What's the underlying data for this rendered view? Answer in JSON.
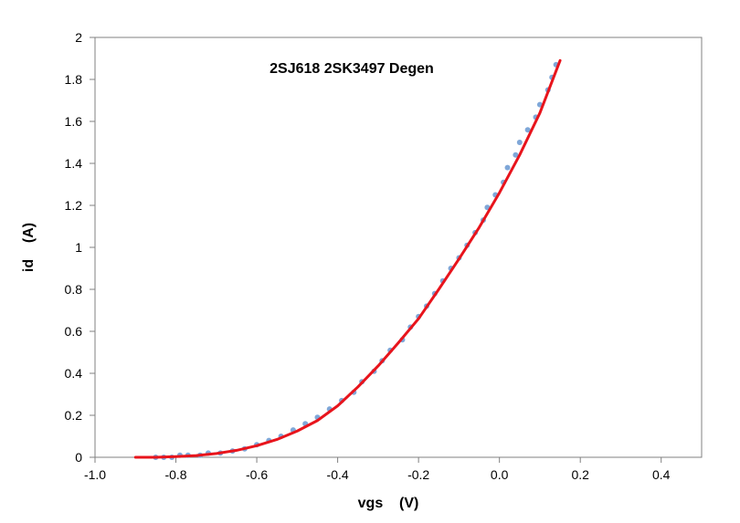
{
  "chart_data": {
    "type": "scatter",
    "title": "2SJ618 2SK3497 Degen",
    "xlabel": "vgs    (V)",
    "ylabel": "id    (A)",
    "xlim": [
      -1.0,
      0.5
    ],
    "ylim": [
      0,
      2
    ],
    "x_ticks": [
      -1.0,
      -0.8,
      -0.6,
      -0.4,
      -0.2,
      0.0,
      0.2,
      0.4
    ],
    "x_tick_labels": [
      "-1.0",
      "-0.8",
      "-0.6",
      "-0.4",
      "-0.2",
      "0.0",
      "0.2",
      "0.4"
    ],
    "y_ticks": [
      0,
      0.2,
      0.4,
      0.6,
      0.8,
      1,
      1.2,
      1.4,
      1.6,
      1.8,
      2
    ],
    "y_tick_labels": [
      "0",
      "0.2",
      "0.4",
      "0.6",
      "0.8",
      "1",
      "1.2",
      "1.4",
      "1.6",
      "1.8",
      "2"
    ],
    "grid": false,
    "series": [
      {
        "kind": "markers",
        "color": "#7fa7d8",
        "points": [
          [
            -0.85,
            0.0
          ],
          [
            -0.83,
            0.0
          ],
          [
            -0.81,
            0.0
          ],
          [
            -0.79,
            0.01
          ],
          [
            -0.77,
            0.01
          ],
          [
            -0.74,
            0.01
          ],
          [
            -0.72,
            0.02
          ],
          [
            -0.69,
            0.02
          ],
          [
            -0.66,
            0.03
          ],
          [
            -0.63,
            0.04
          ],
          [
            -0.6,
            0.06
          ],
          [
            -0.57,
            0.08
          ],
          [
            -0.54,
            0.1
          ],
          [
            -0.51,
            0.13
          ],
          [
            -0.48,
            0.16
          ],
          [
            -0.45,
            0.19
          ],
          [
            -0.42,
            0.23
          ],
          [
            -0.39,
            0.27
          ],
          [
            -0.36,
            0.31
          ],
          [
            -0.34,
            0.36
          ],
          [
            -0.31,
            0.41
          ],
          [
            -0.29,
            0.46
          ],
          [
            -0.27,
            0.51
          ],
          [
            -0.24,
            0.56
          ],
          [
            -0.22,
            0.62
          ],
          [
            -0.2,
            0.67
          ],
          [
            -0.18,
            0.72
          ],
          [
            -0.16,
            0.78
          ],
          [
            -0.14,
            0.84
          ],
          [
            -0.12,
            0.9
          ],
          [
            -0.1,
            0.95
          ],
          [
            -0.08,
            1.01
          ],
          [
            -0.06,
            1.07
          ],
          [
            -0.04,
            1.13
          ],
          [
            -0.03,
            1.19
          ],
          [
            -0.01,
            1.25
          ],
          [
            0.01,
            1.31
          ],
          [
            0.02,
            1.38
          ],
          [
            0.04,
            1.44
          ],
          [
            0.05,
            1.5
          ],
          [
            0.07,
            1.56
          ],
          [
            0.09,
            1.62
          ],
          [
            0.1,
            1.68
          ],
          [
            0.12,
            1.75
          ],
          [
            0.13,
            1.81
          ],
          [
            0.14,
            1.87
          ]
        ]
      },
      {
        "kind": "line",
        "color": "#e8141c",
        "points": [
          [
            -0.9,
            0.0
          ],
          [
            -0.85,
            0.0
          ],
          [
            -0.8,
            0.003
          ],
          [
            -0.75,
            0.008
          ],
          [
            -0.7,
            0.018
          ],
          [
            -0.65,
            0.033
          ],
          [
            -0.6,
            0.055
          ],
          [
            -0.55,
            0.085
          ],
          [
            -0.5,
            0.125
          ],
          [
            -0.45,
            0.175
          ],
          [
            -0.4,
            0.245
          ],
          [
            -0.35,
            0.335
          ],
          [
            -0.3,
            0.435
          ],
          [
            -0.25,
            0.545
          ],
          [
            -0.2,
            0.66
          ],
          [
            -0.15,
            0.8
          ],
          [
            -0.1,
            0.945
          ],
          [
            -0.05,
            1.095
          ],
          [
            0.0,
            1.26
          ],
          [
            0.05,
            1.44
          ],
          [
            0.1,
            1.64
          ],
          [
            0.15,
            1.89
          ]
        ]
      }
    ]
  }
}
